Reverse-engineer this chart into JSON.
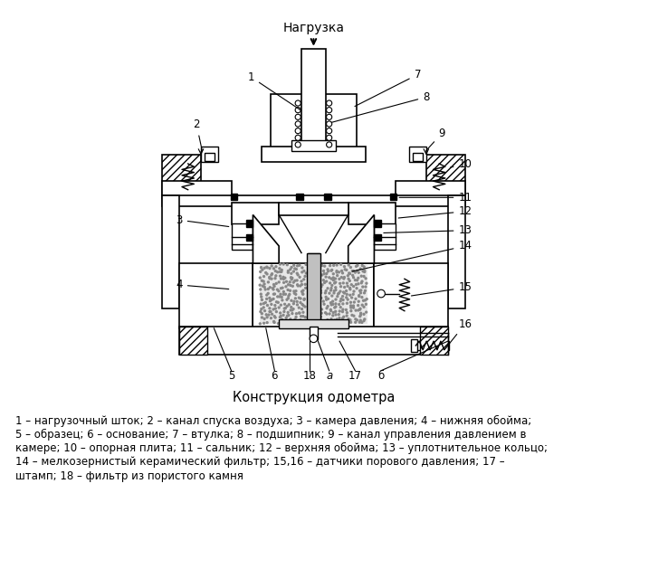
{
  "title": "Конструкция одометра",
  "top_label": "Нагрузка",
  "bg_color": "#ffffff",
  "line_color": "#000000",
  "caption": "1 – нагрузочный шток; 2 – канал спуска воздуха; 3 – камера давления; 4 – нижняя обойма;\n5 – образец; 6 – основание; 7 – втулка; 8 – подшипник; 9 – канал управления давлением в\nкамере; 10 – опорная плита; 11 – сальник; 12 – верхняя обойма; 13 – уплотнительное кольцо;\n14 – мелкозернистый керамический фильтр; 15,16 – датчики порового давления; 17 –\nштамп; 18 – фильтр из пористого камня"
}
